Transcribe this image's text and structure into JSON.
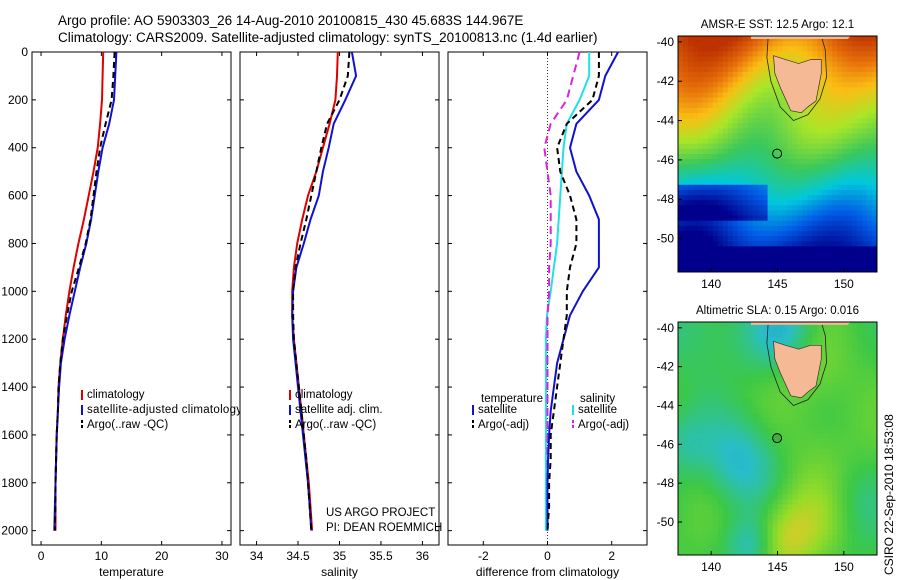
{
  "header": {
    "line1": "Argo profile: AO 5903303_26 14-Aug-2010 20100815_430 45.683S 144.967E",
    "line2": "Climatology: CARS2009. Satellite-adjusted climatology: synTS_20100813.nc (1.4d earlier)"
  },
  "side_label": "CSIRO 22-Sep-2010 18:53:08",
  "colors": {
    "climatology": "#e00000",
    "satellite": "#1010d0",
    "argo": "#000000",
    "temp_diff_sat": "#20e0e8",
    "sal_diff_argo": "#e020e0"
  },
  "chart_data": [
    {
      "type": "line",
      "id": "temperature",
      "xlabel": "temperature",
      "xlim": [
        -1.5,
        31.5
      ],
      "xticks": [
        "0",
        "10",
        "20",
        "30"
      ],
      "ylim": [
        0,
        2060
      ],
      "yticks": [
        "0",
        "200",
        "400",
        "600",
        "800",
        "1000",
        "1200",
        "1400",
        "1600",
        "1800",
        "2000"
      ],
      "depth": [
        0,
        100,
        200,
        300,
        400,
        500,
        600,
        700,
        800,
        900,
        1000,
        1100,
        1200,
        1300,
        1400,
        1500,
        1600,
        1700,
        1800,
        1900,
        2000
      ],
      "series": [
        {
          "name": "climatology",
          "values": [
            10.3,
            10.2,
            10.1,
            9.8,
            9.4,
            8.7,
            7.9,
            7.1,
            6.2,
            5.4,
            4.7,
            4.1,
            3.6,
            3.2,
            2.9,
            2.8,
            2.6,
            2.5,
            2.4,
            2.4,
            2.4
          ]
        },
        {
          "name": "satellite-adjusted climatology",
          "values": [
            12.5,
            12.3,
            12.1,
            11.3,
            10.2,
            9.5,
            8.9,
            8.3,
            7.5,
            6.5,
            5.6,
            4.7,
            3.9,
            3.3,
            3.0,
            2.8,
            2.6,
            2.5,
            2.4,
            2.3,
            2.2
          ]
        },
        {
          "name": "Argo(..raw -QC)",
          "values": [
            12.2,
            12.0,
            11.7,
            10.7,
            9.8,
            9.2,
            8.7,
            8.2,
            7.4,
            6.3,
            5.1,
            4.3,
            3.6,
            3.2,
            2.9,
            2.8,
            2.6,
            2.5,
            2.4,
            2.4,
            2.3
          ]
        }
      ],
      "legend": [
        "climatology",
        "satellite-adjusted climatology",
        "Argo(..raw -QC)"
      ]
    },
    {
      "type": "line",
      "id": "salinity",
      "xlabel": "salinity",
      "xlim": [
        33.8,
        36.2
      ],
      "xticks": [
        "34",
        "34.5",
        "35",
        "35.5",
        "36"
      ],
      "ylim": [
        0,
        2060
      ],
      "depth": [
        0,
        100,
        200,
        300,
        400,
        500,
        600,
        700,
        800,
        900,
        1000,
        1100,
        1200,
        1300,
        1400,
        1500,
        1600,
        1700,
        1800,
        1900,
        2000
      ],
      "series": [
        {
          "name": "climatology",
          "values": [
            34.98,
            34.97,
            34.95,
            34.88,
            34.8,
            34.72,
            34.62,
            34.55,
            34.49,
            34.45,
            34.43,
            34.43,
            34.45,
            34.48,
            34.51,
            34.54,
            34.57,
            34.6,
            34.63,
            34.65,
            34.67
          ]
        },
        {
          "name": "satellite adj. clim.",
          "values": [
            35.15,
            35.2,
            35.07,
            34.93,
            34.87,
            34.8,
            34.75,
            34.65,
            34.57,
            34.48,
            34.44,
            34.43,
            34.44,
            34.47,
            34.5,
            34.53,
            34.56,
            34.59,
            34.62,
            34.64,
            34.66
          ]
        },
        {
          "name": "Argo(..raw -QC)",
          "values": [
            35.12,
            35.1,
            35.0,
            34.85,
            34.78,
            34.72,
            34.66,
            34.6,
            34.53,
            34.47,
            34.44,
            34.44,
            34.45,
            34.48,
            34.51,
            34.54,
            34.57,
            34.6,
            34.62,
            34.64,
            34.66
          ]
        }
      ],
      "legend": [
        "climatology",
        "satellite adj. clim.",
        "Argo(..raw -QC)"
      ],
      "annotation": [
        "US ARGO PROJECT",
        "PI: DEAN ROEMMICH"
      ]
    },
    {
      "type": "line",
      "id": "difference",
      "xlabel": "difference from climatology",
      "xlim": [
        -3.1,
        3.1
      ],
      "xticks": [
        "-2",
        "0",
        "2"
      ],
      "ylim": [
        0,
        2060
      ],
      "depth": [
        0,
        100,
        200,
        300,
        400,
        500,
        600,
        700,
        800,
        900,
        1000,
        1100,
        1200,
        1300,
        1400,
        1500,
        1600,
        1700,
        1800,
        1900,
        2000
      ],
      "series": [
        {
          "name": "temperature satellite",
          "values": [
            2.2,
            1.8,
            1.6,
            0.9,
            0.7,
            0.9,
            1.3,
            1.6,
            1.6,
            1.6,
            1.1,
            0.7,
            0.5,
            0.3,
            0.2,
            0.1,
            0.05,
            0.02,
            0.0,
            0.0,
            0.0
          ]
        },
        {
          "name": "temperature Argo(-adj)",
          "values": [
            1.6,
            1.6,
            1.4,
            0.6,
            0.3,
            0.4,
            0.7,
            0.9,
            0.9,
            0.7,
            0.6,
            0.6,
            0.5,
            0.4,
            0.3,
            0.2,
            0.1,
            0.1,
            0.05,
            0.05,
            0.0
          ]
        },
        {
          "name": "salinity satellite",
          "values": [
            1.3,
            1.3,
            1.0,
            0.6,
            0.5,
            0.45,
            0.4,
            0.35,
            0.3,
            0.2,
            0.1,
            -0.02,
            -0.05,
            -0.05,
            -0.05,
            -0.05,
            -0.05,
            -0.05,
            -0.05,
            -0.05,
            -0.05
          ]
        },
        {
          "name": "salinity Argo(-adj)",
          "values": [
            1.0,
            0.8,
            0.6,
            0.1,
            -0.1,
            0.0,
            0.1,
            0.1,
            0.1,
            0.05,
            0.05,
            0.0,
            0.0,
            0.0,
            0.0,
            0.0,
            0.0,
            0.0,
            0.0,
            0.0,
            0.0
          ]
        }
      ],
      "legend_left_title": "temperature",
      "legend_right_title": "salinity",
      "legend_items": [
        "satellite",
        "Argo(-adj)"
      ]
    },
    {
      "type": "heatmap",
      "id": "sst-map",
      "title": "AMSR-E SST: 12.5 Argo: 12.1",
      "xticks": [
        "140",
        "145",
        "150"
      ],
      "yticks": [
        "-40",
        "-42",
        "-44",
        "-46",
        "-48",
        "-50"
      ],
      "xlim": [
        137.5,
        152.5
      ],
      "ylim": [
        -51.7,
        -39.7
      ],
      "marker": {
        "lon": 144.97,
        "lat": -45.68
      }
    },
    {
      "type": "heatmap",
      "id": "sla-map",
      "title": "Altimetric SLA: 0.15 Argo: 0.016",
      "xticks": [
        "140",
        "145",
        "150"
      ],
      "yticks": [
        "-40",
        "-42",
        "-44",
        "-46",
        "-48",
        "-50"
      ],
      "xlim": [
        137.5,
        152.5
      ],
      "ylim": [
        -51.7,
        -39.7
      ],
      "marker": {
        "lon": 144.97,
        "lat": -45.68
      }
    }
  ]
}
